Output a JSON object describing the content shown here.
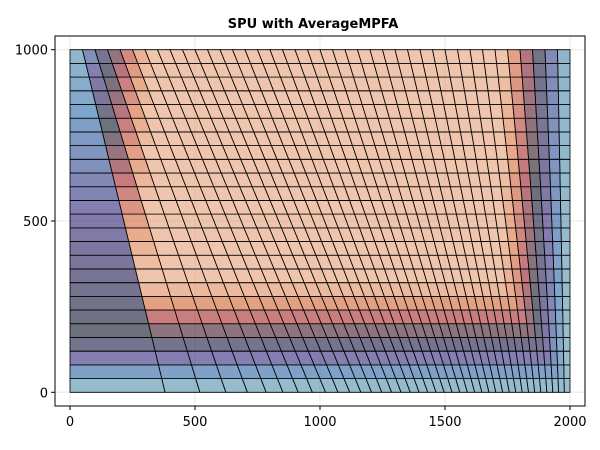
{
  "chart_data": {
    "type": "heatmap",
    "title": "SPU with AverageMPFA",
    "xlabel": "",
    "ylabel": "",
    "xlim": [
      -60,
      2060
    ],
    "ylim": [
      -40,
      1040
    ],
    "x_ticks": [
      0,
      500,
      1000,
      1500,
      2000
    ],
    "x_tick_labels": [
      "0",
      "500",
      "1000",
      "1500",
      "2000"
    ],
    "y_ticks": [
      0,
      500,
      1000
    ],
    "y_tick_labels": [
      "0",
      "500",
      "1000"
    ],
    "grid": true,
    "legend": "none",
    "mesh": {
      "nx": 40,
      "ny": 25,
      "x_range": [
        0,
        2000
      ],
      "y_range": [
        0,
        1000
      ],
      "skew_bottom_to_top": true
    },
    "colormap": [
      "#6aa6ad",
      "#2f6faa",
      "#38287a",
      "#121a2c",
      "#a02430",
      "#d9703a",
      "#e6a27a"
    ],
    "colormap_note": "Cool-to-warm colour scale; the largest values sit in the upper interior, the smallest along the left, bottom and right edges."
  }
}
